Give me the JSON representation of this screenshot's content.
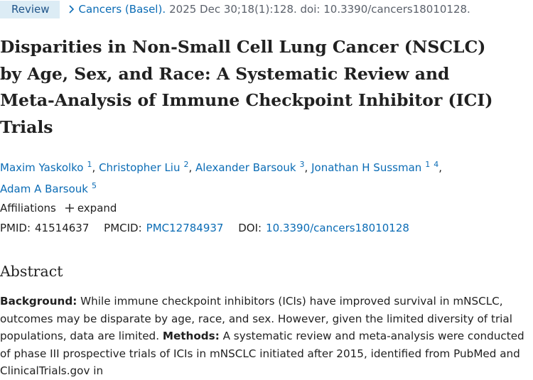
{
  "header": {
    "badge": "Review",
    "journal": "Cancers (Basel).",
    "citation": "2025 Dec 30;18(1):128. doi: 10.3390/cancers18010128."
  },
  "title_lines": [
    "Disparities in Non-Small Cell Lung Cancer (NSCLC)",
    "by Age, Sex, and Race: A Systematic Review and",
    "Meta-Analysis of Immune Checkpoint Inhibitor (ICI)",
    "Trials"
  ],
  "authors": [
    {
      "name": "Maxim Yaskolko",
      "affiliations": [
        "1"
      ],
      "punctuation": ","
    },
    {
      "name": "Christopher Liu",
      "affiliations": [
        "2"
      ],
      "punctuation": ","
    },
    {
      "name": "Alexander Barsouk",
      "affiliations": [
        "3"
      ],
      "punctuation": ","
    },
    {
      "name": "Jonathan H Sussman",
      "affiliations": [
        "1",
        "4"
      ],
      "punctuation": ","
    },
    {
      "name": "Adam A Barsouk",
      "affiliations": [
        "5"
      ]
    }
  ],
  "affiliations": {
    "label": "Affiliations",
    "toggle": "expand"
  },
  "identifiers": {
    "pmid_label": "PMID:",
    "pmid": "41514637",
    "pmcid_label": "PMCID:",
    "pmcid": "PMC12784937",
    "doi_label": "DOI:",
    "doi": "10.3390/cancers18010128"
  },
  "abstract": {
    "heading": "Abstract",
    "sections": [
      {
        "label": "Background:",
        "text": "While immune checkpoint inhibitors (ICIs) have improved survival in mNSCLC, outcomes may be disparate by age, race, and sex. However, given the limited diversity of trial populations, data are limited."
      },
      {
        "label": "Methods:",
        "text": "A systematic review and meta-analysis were conducted of phase III prospective trials of ICIs in mNSCLC initiated after 2015, identified from PubMed and ClinicalTrials.gov in"
      }
    ]
  }
}
